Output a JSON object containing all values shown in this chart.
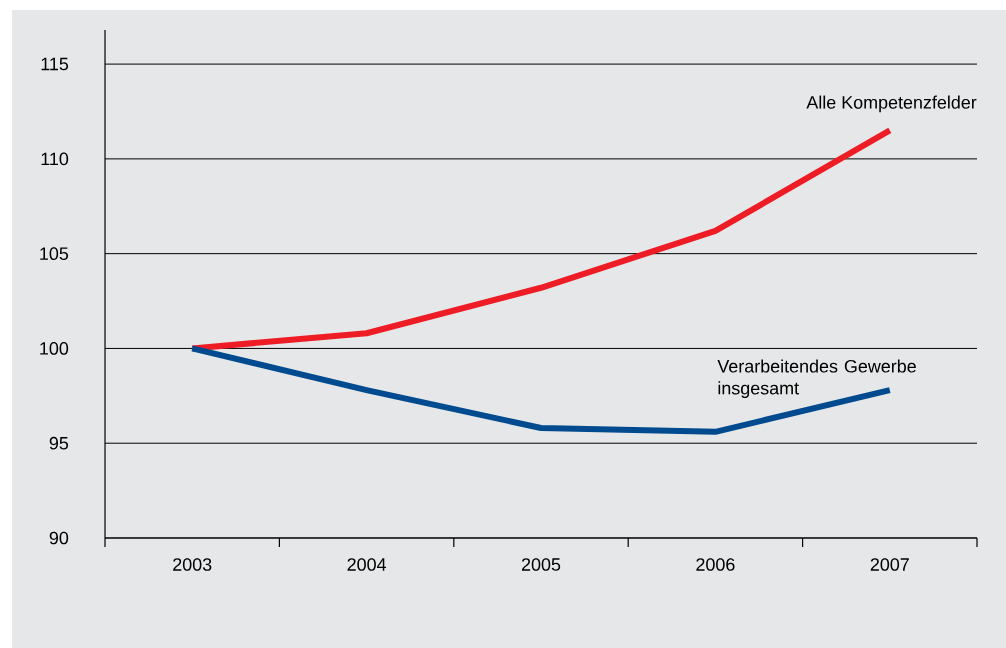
{
  "chart_data": {
    "type": "line",
    "categories": [
      "2003",
      "2004",
      "2005",
      "2006",
      "2007"
    ],
    "series": [
      {
        "name": "Alle Kompetenzfelder",
        "color": "#ee1c25",
        "values": [
          100,
          100.8,
          103.2,
          106.2,
          111.5
        ]
      },
      {
        "name": "Verarbeitendes Gewerbe insgesamt",
        "color": "#004a8f",
        "values": [
          100,
          97.8,
          95.8,
          95.6,
          97.8
        ]
      }
    ],
    "ylim": [
      90,
      116.8
    ],
    "yticks": [
      90,
      95,
      100,
      105,
      110,
      115
    ],
    "grid": "y",
    "legend": false,
    "marker": "none",
    "line_style": "solid"
  }
}
